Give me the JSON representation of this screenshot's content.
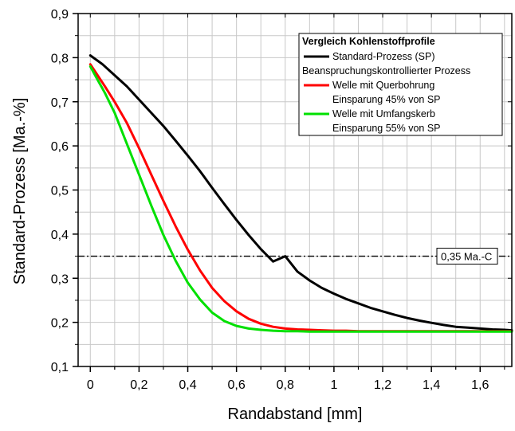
{
  "chart_data": {
    "type": "line",
    "xlabel": "Randabstand [mm]",
    "ylabel": "Standard-Prozess [Ma.-%]",
    "xlim": [
      -0.05,
      1.73
    ],
    "ylim": [
      0.1,
      0.9
    ],
    "x_ticks": [
      0,
      0.2,
      0.4,
      0.6,
      0.8,
      1,
      1.2,
      1.4,
      1.6
    ],
    "x_tick_labels": [
      "0",
      "0,2",
      "0,4",
      "0,6",
      "0,8",
      "1",
      "1,2",
      "1,4",
      "1,6"
    ],
    "y_ticks": [
      0.1,
      0.2,
      0.3,
      0.4,
      0.5,
      0.6,
      0.7,
      0.8,
      0.9
    ],
    "y_tick_labels": [
      "0,1",
      "0,2",
      "0,3",
      "0,4",
      "0,5",
      "0,6",
      "0,7",
      "0,8",
      "0,9"
    ],
    "grid": true,
    "legend": {
      "placement": "top-right",
      "title": "Vergleich Kohlenstoffprofile",
      "group_label": "Beanspruchungskontrollierter Prozess"
    },
    "series": [
      {
        "name": "Standard-Prozess (SP)",
        "color": "#000000",
        "x": [
          0,
          0.05,
          0.1,
          0.15,
          0.2,
          0.25,
          0.3,
          0.35,
          0.4,
          0.45,
          0.5,
          0.55,
          0.6,
          0.65,
          0.7,
          0.75,
          0.8,
          0.85,
          0.9,
          0.95,
          1.0,
          1.05,
          1.1,
          1.15,
          1.2,
          1.25,
          1.3,
          1.35,
          1.4,
          1.45,
          1.5,
          1.55,
          1.6,
          1.65,
          1.7,
          1.73
        ],
        "y": [
          0.805,
          0.785,
          0.76,
          0.735,
          0.705,
          0.675,
          0.645,
          0.612,
          0.578,
          0.543,
          0.505,
          0.468,
          0.432,
          0.398,
          0.366,
          0.338,
          0.35,
          0.315,
          0.295,
          0.278,
          0.265,
          0.253,
          0.243,
          0.233,
          0.225,
          0.217,
          0.21,
          0.204,
          0.199,
          0.194,
          0.19,
          0.188,
          0.186,
          0.184,
          0.183,
          0.182
        ]
      },
      {
        "name": "Welle mit Querbohrung",
        "sublabel": "Einsparung 45% von SP",
        "color": "#ff0000",
        "x": [
          0,
          0.03,
          0.06,
          0.1,
          0.15,
          0.2,
          0.25,
          0.3,
          0.35,
          0.4,
          0.45,
          0.5,
          0.55,
          0.6,
          0.65,
          0.7,
          0.75,
          0.8,
          0.85,
          0.9,
          0.95,
          1.0,
          1.05,
          1.1,
          1.2,
          1.4,
          1.6,
          1.73
        ],
        "y": [
          0.785,
          0.76,
          0.735,
          0.7,
          0.652,
          0.595,
          0.535,
          0.475,
          0.418,
          0.365,
          0.318,
          0.278,
          0.248,
          0.225,
          0.208,
          0.197,
          0.19,
          0.186,
          0.184,
          0.183,
          0.182,
          0.181,
          0.181,
          0.18,
          0.18,
          0.18,
          0.18,
          0.18
        ]
      },
      {
        "name": "Welle mit Umfangskerb",
        "sublabel": "Einsparung 55% von SP",
        "color": "#00e000",
        "x": [
          0,
          0.03,
          0.06,
          0.1,
          0.15,
          0.2,
          0.25,
          0.3,
          0.35,
          0.4,
          0.45,
          0.5,
          0.55,
          0.6,
          0.65,
          0.7,
          0.75,
          0.8,
          0.85,
          0.9,
          1.0,
          1.2,
          1.4,
          1.6,
          1.73
        ],
        "y": [
          0.78,
          0.75,
          0.72,
          0.675,
          0.605,
          0.535,
          0.465,
          0.398,
          0.34,
          0.29,
          0.252,
          0.222,
          0.203,
          0.192,
          0.186,
          0.183,
          0.181,
          0.18,
          0.18,
          0.179,
          0.179,
          0.179,
          0.179,
          0.179,
          0.179
        ]
      }
    ],
    "reference_line": {
      "y": 0.35,
      "label": "0,35 Ma.-C",
      "style": "dash-dot"
    }
  }
}
